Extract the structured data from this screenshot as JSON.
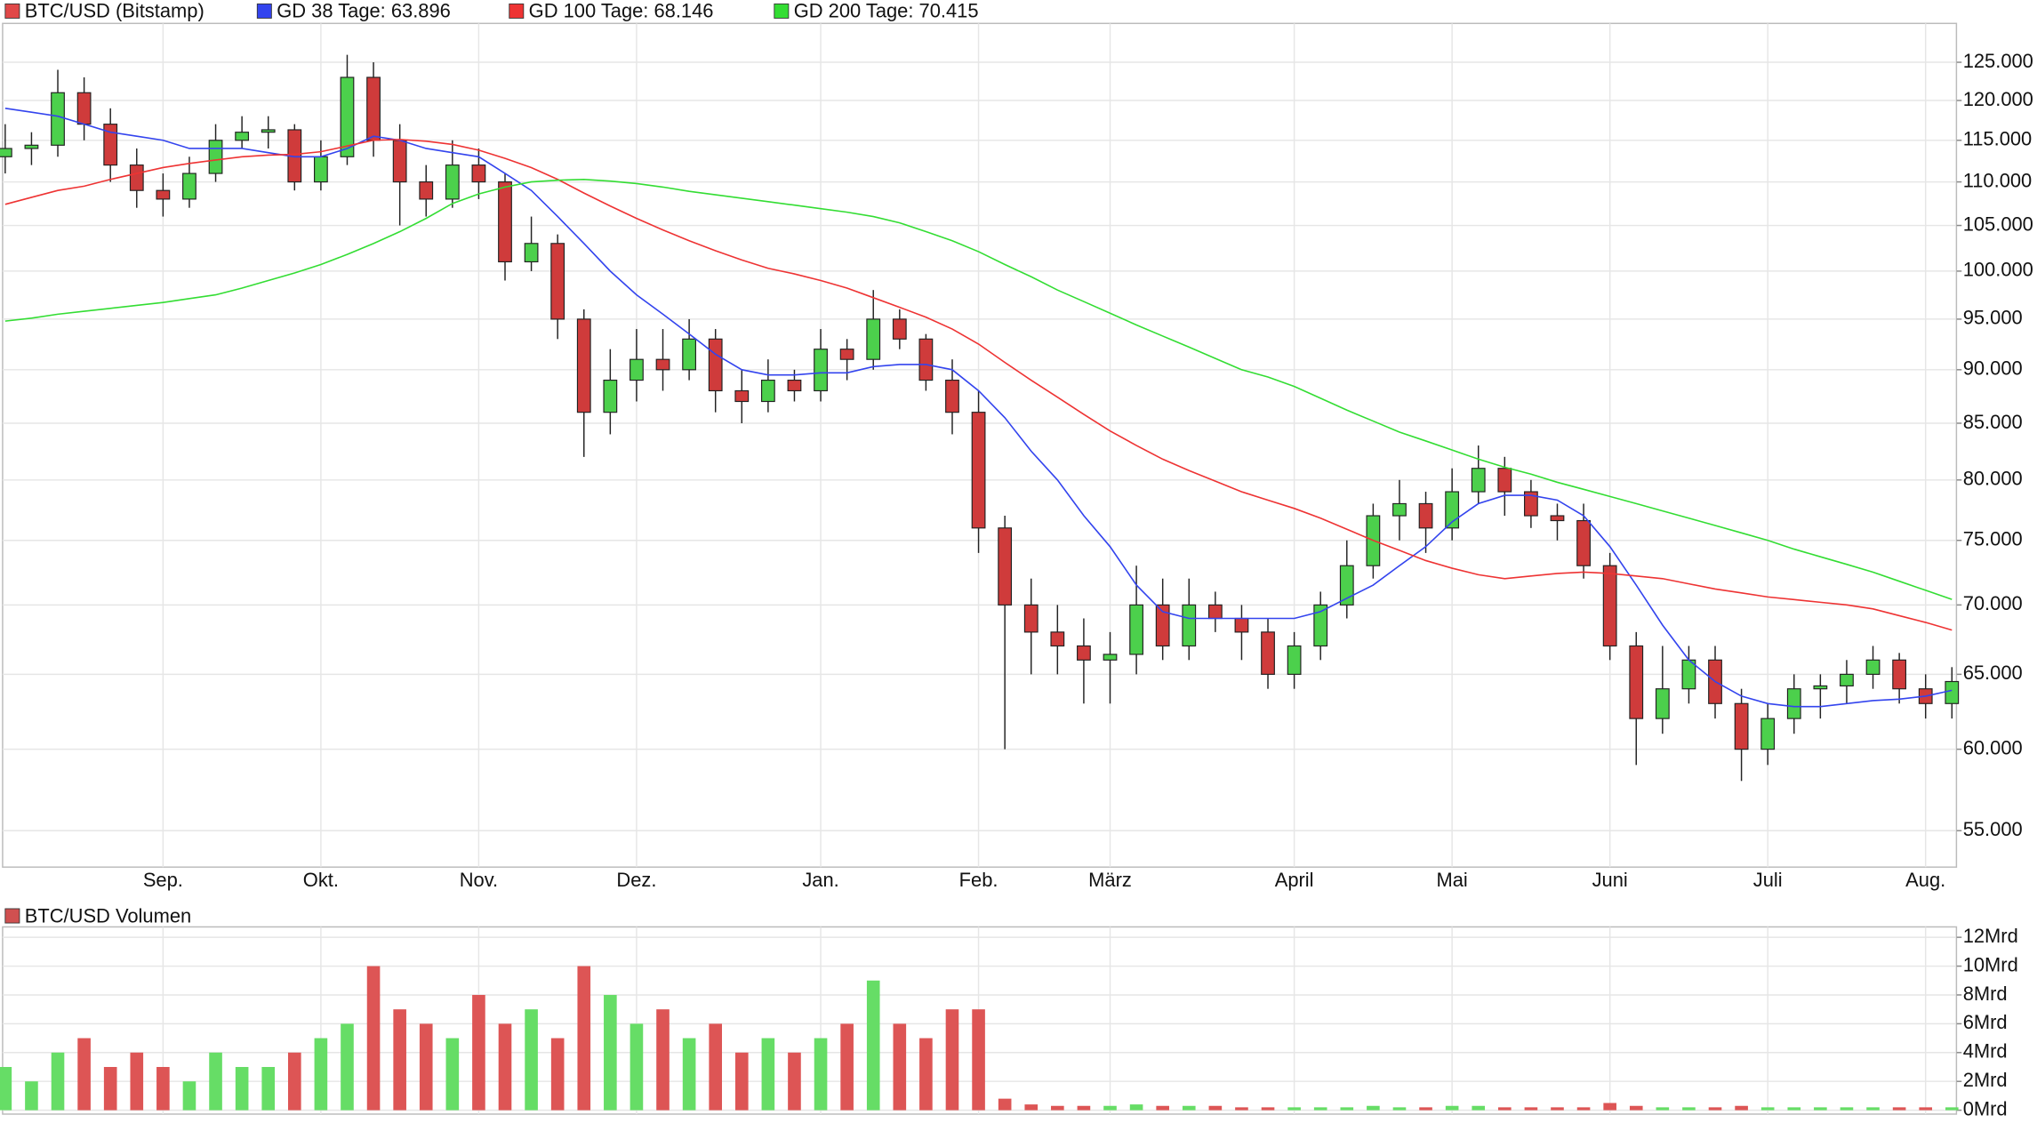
{
  "chart_data": [
    {
      "type": "candlestick",
      "categories": [
        null,
        null,
        null,
        null,
        null,
        null,
        "Sep.",
        null,
        null,
        null,
        null,
        null,
        "Okt.",
        null,
        null,
        null,
        null,
        null,
        "Nov.",
        null,
        null,
        null,
        null,
        null,
        "Dez.",
        null,
        null,
        null,
        null,
        null,
        null,
        "Jan.",
        null,
        null,
        null,
        null,
        null,
        "Feb.",
        null,
        null,
        null,
        null,
        "März",
        null,
        null,
        null,
        null,
        null,
        null,
        "April",
        null,
        null,
        null,
        null,
        null,
        "Mai",
        null,
        null,
        null,
        null,
        null,
        "Juni",
        null,
        null,
        null,
        null,
        null,
        "Juli",
        null,
        null,
        null,
        null,
        null,
        "Aug.",
        null
      ],
      "series": [
        {
          "name": "BTC/USD (Bitstamp)",
          "color": "#e04848",
          "open": [
            113000,
            114000,
            114400,
            121000,
            117000,
            112000,
            109000,
            108000,
            111000,
            115000,
            116000,
            116300,
            110000,
            113000,
            123000,
            115000,
            110000,
            108000,
            112000,
            110000,
            101000,
            103000,
            95000,
            86000,
            89000,
            91000,
            90000,
            93000,
            88000,
            87000,
            89000,
            88000,
            92000,
            91000,
            95000,
            93000,
            89000,
            86000,
            76000,
            70000,
            68000,
            67000,
            66000,
            66400,
            70000,
            67000,
            70000,
            69000,
            68000,
            65000,
            67000,
            70000,
            73000,
            77000,
            78000,
            76000,
            79000,
            81000,
            79000,
            77000,
            76600,
            73000,
            67000,
            62000,
            64000,
            66000,
            63000,
            60000,
            62000,
            64000,
            64200,
            65000,
            66000,
            64000,
            63000
          ],
          "high": [
            117000,
            116000,
            124000,
            123000,
            119000,
            114000,
            111000,
            113000,
            117000,
            118000,
            118000,
            117000,
            115000,
            126000,
            125000,
            117000,
            112000,
            115000,
            114000,
            111000,
            106000,
            104000,
            96000,
            92000,
            94000,
            94000,
            95000,
            94000,
            90000,
            91000,
            90000,
            94000,
            93000,
            98000,
            96000,
            93500,
            91000,
            88000,
            77000,
            72000,
            70000,
            69000,
            68000,
            73000,
            72000,
            72000,
            71000,
            70000,
            69000,
            68000,
            71000,
            75000,
            78000,
            80000,
            79000,
            81000,
            83000,
            82000,
            80000,
            78000,
            78000,
            74000,
            68000,
            67000,
            67000,
            67000,
            64000,
            63000,
            65000,
            65000,
            66000,
            67000,
            66500,
            65000,
            65500
          ],
          "low": [
            111000,
            112000,
            113000,
            115000,
            110000,
            107000,
            106000,
            107000,
            110000,
            114000,
            114000,
            109000,
            109000,
            112000,
            113000,
            105000,
            106000,
            107000,
            108000,
            99000,
            100000,
            93000,
            82000,
            84000,
            87000,
            88000,
            89000,
            86000,
            85000,
            86000,
            87000,
            87000,
            89000,
            90000,
            92000,
            88000,
            84000,
            74000,
            60000,
            65000,
            65000,
            63000,
            63000,
            65000,
            66000,
            66000,
            68000,
            66000,
            64000,
            64000,
            66000,
            69000,
            72000,
            75000,
            74000,
            75000,
            78000,
            77000,
            76000,
            75000,
            72000,
            66000,
            59000,
            61000,
            63000,
            62000,
            58000,
            59000,
            61000,
            62000,
            63000,
            64000,
            63000,
            62000,
            62000
          ],
          "close": [
            114000,
            114400,
            121000,
            117000,
            112000,
            109000,
            108000,
            111000,
            115000,
            116000,
            116300,
            110000,
            113000,
            123000,
            115000,
            110000,
            108000,
            112000,
            110000,
            101000,
            103000,
            95000,
            86000,
            89000,
            91000,
            90000,
            93000,
            88000,
            87000,
            89000,
            88000,
            92000,
            91000,
            95000,
            93000,
            89000,
            86000,
            76000,
            70000,
            68000,
            67000,
            66000,
            66400,
            70000,
            67000,
            70000,
            69000,
            68000,
            65000,
            67000,
            70000,
            73000,
            77000,
            78000,
            76000,
            79000,
            81000,
            79000,
            77000,
            76600,
            73000,
            67000,
            62000,
            64000,
            66000,
            63000,
            60000,
            62000,
            64000,
            64200,
            65000,
            66000,
            64000,
            63000,
            64500
          ]
        },
        {
          "name": "GD 38 Tage: 63.896",
          "color": "#3344ee",
          "values": [
            119000,
            118500,
            118000,
            117000,
            116000,
            115500,
            115000,
            114000,
            114000,
            114000,
            113500,
            113000,
            113000,
            114000,
            115500,
            115000,
            114000,
            113500,
            113000,
            111000,
            109000,
            106000,
            103000,
            100000,
            97500,
            95500,
            93500,
            91500,
            90000,
            89500,
            89500,
            89700,
            89700,
            90300,
            90500,
            90500,
            90000,
            88000,
            85500,
            82500,
            80000,
            77000,
            74500,
            71500,
            69500,
            69000,
            69000,
            69000,
            69000,
            69000,
            69500,
            70500,
            71500,
            73000,
            74500,
            76500,
            78000,
            78700,
            78700,
            78300,
            77000,
            74500,
            71500,
            68500,
            66000,
            64500,
            63500,
            63000,
            62800,
            62800,
            63000,
            63200,
            63300,
            63500,
            63896
          ]
        },
        {
          "name": "GD 100 Tage: 68.146",
          "color": "#ee3333",
          "values": [
            107400,
            108200,
            109000,
            109500,
            110300,
            111000,
            111700,
            112200,
            112600,
            113000,
            113200,
            113300,
            113600,
            114300,
            115000,
            115100,
            114900,
            114500,
            113800,
            112800,
            111700,
            110300,
            108700,
            107200,
            105800,
            104500,
            103300,
            102200,
            101200,
            100300,
            99700,
            99000,
            98200,
            97200,
            96200,
            95200,
            94000,
            92500,
            90700,
            89000,
            87400,
            85800,
            84300,
            83000,
            81800,
            80800,
            79900,
            79000,
            78300,
            77600,
            76800,
            75900,
            75000,
            74200,
            73400,
            72800,
            72300,
            72000,
            72200,
            72400,
            72500,
            72400,
            72200,
            72000,
            71600,
            71200,
            70900,
            70600,
            70400,
            70200,
            70000,
            69700,
            69200,
            68700,
            68146
          ]
        },
        {
          "name": "GD 200 Tage: 70.415",
          "color": "#33dd33",
          "values": [
            94800,
            95100,
            95500,
            95800,
            96100,
            96400,
            96700,
            97100,
            97500,
            98200,
            99000,
            99800,
            100700,
            101800,
            103000,
            104300,
            105800,
            107500,
            108600,
            109400,
            110000,
            110200,
            110300,
            110100,
            109800,
            109400,
            108900,
            108500,
            108100,
            107700,
            107300,
            106900,
            106500,
            106000,
            105300,
            104300,
            103300,
            102100,
            100700,
            99400,
            98000,
            96800,
            95600,
            94400,
            93300,
            92200,
            91100,
            90000,
            89300,
            88400,
            87300,
            86200,
            85200,
            84200,
            83400,
            82600,
            81800,
            81100,
            80500,
            79800,
            79200,
            78600,
            78000,
            77400,
            76800,
            76200,
            75600,
            75000,
            74300,
            73700,
            73100,
            72500,
            71800,
            71100,
            70415
          ]
        }
      ],
      "up_color": "#4cd04c",
      "down_color": "#cf3b3b",
      "log_scale": true,
      "grid": true,
      "ylim": [
        52900,
        130300
      ],
      "yticks": [
        {
          "value": 55000,
          "label": "55.000"
        },
        {
          "value": 60000,
          "label": "60.000"
        },
        {
          "value": 65000,
          "label": "65.000"
        },
        {
          "value": 70000,
          "label": "70.000"
        },
        {
          "value": 75000,
          "label": "75.000"
        },
        {
          "value": 80000,
          "label": "80.000"
        },
        {
          "value": 85000,
          "label": "85.000"
        },
        {
          "value": 90000,
          "label": "90.000"
        },
        {
          "value": 95000,
          "label": "95.000"
        },
        {
          "value": 100000,
          "label": "100.000"
        },
        {
          "value": 105000,
          "label": "105.000"
        },
        {
          "value": 110000,
          "label": "110.000"
        },
        {
          "value": 115000,
          "label": "115.000"
        },
        {
          "value": 120000,
          "label": "120.000"
        },
        {
          "value": 125000,
          "label": "125.000"
        }
      ]
    },
    {
      "type": "bar",
      "series": [
        {
          "name": "BTC/USD Volumen",
          "color": "#d05050",
          "values": [
            3,
            2,
            4,
            5,
            3,
            4,
            3,
            2,
            4,
            3,
            3,
            4,
            5,
            6,
            10,
            7,
            6,
            5,
            8,
            6,
            7,
            5,
            10,
            8,
            6,
            7,
            5,
            6,
            4,
            5,
            4,
            5,
            6,
            9,
            6,
            5,
            7,
            7,
            0.8,
            0.4,
            0.3,
            0.3,
            0.3,
            0.4,
            0.3,
            0.3,
            0.3,
            0.2,
            0.2,
            0.2,
            0.2,
            0.2,
            0.3,
            0.2,
            0.2,
            0.3,
            0.3,
            0.2,
            0.2,
            0.2,
            0.2,
            0.5,
            0.3,
            0.2,
            0.2,
            0.2,
            0.3,
            0.2,
            0.2,
            0.2,
            0.2,
            0.2,
            0.2,
            0.2,
            0.2
          ]
        }
      ],
      "up_color": "#66dd66",
      "down_color": "#dd5555",
      "grid": true,
      "ylim": [
        0,
        12
      ],
      "yticks": [
        {
          "value": 0,
          "label": "0Mrd"
        },
        {
          "value": 2,
          "label": "2Mrd"
        },
        {
          "value": 4,
          "label": "4Mrd"
        },
        {
          "value": 6,
          "label": "6Mrd"
        },
        {
          "value": 8,
          "label": "8Mrd"
        },
        {
          "value": 10,
          "label": "10Mrd"
        },
        {
          "value": 12,
          "label": "12Mrd"
        }
      ]
    }
  ]
}
